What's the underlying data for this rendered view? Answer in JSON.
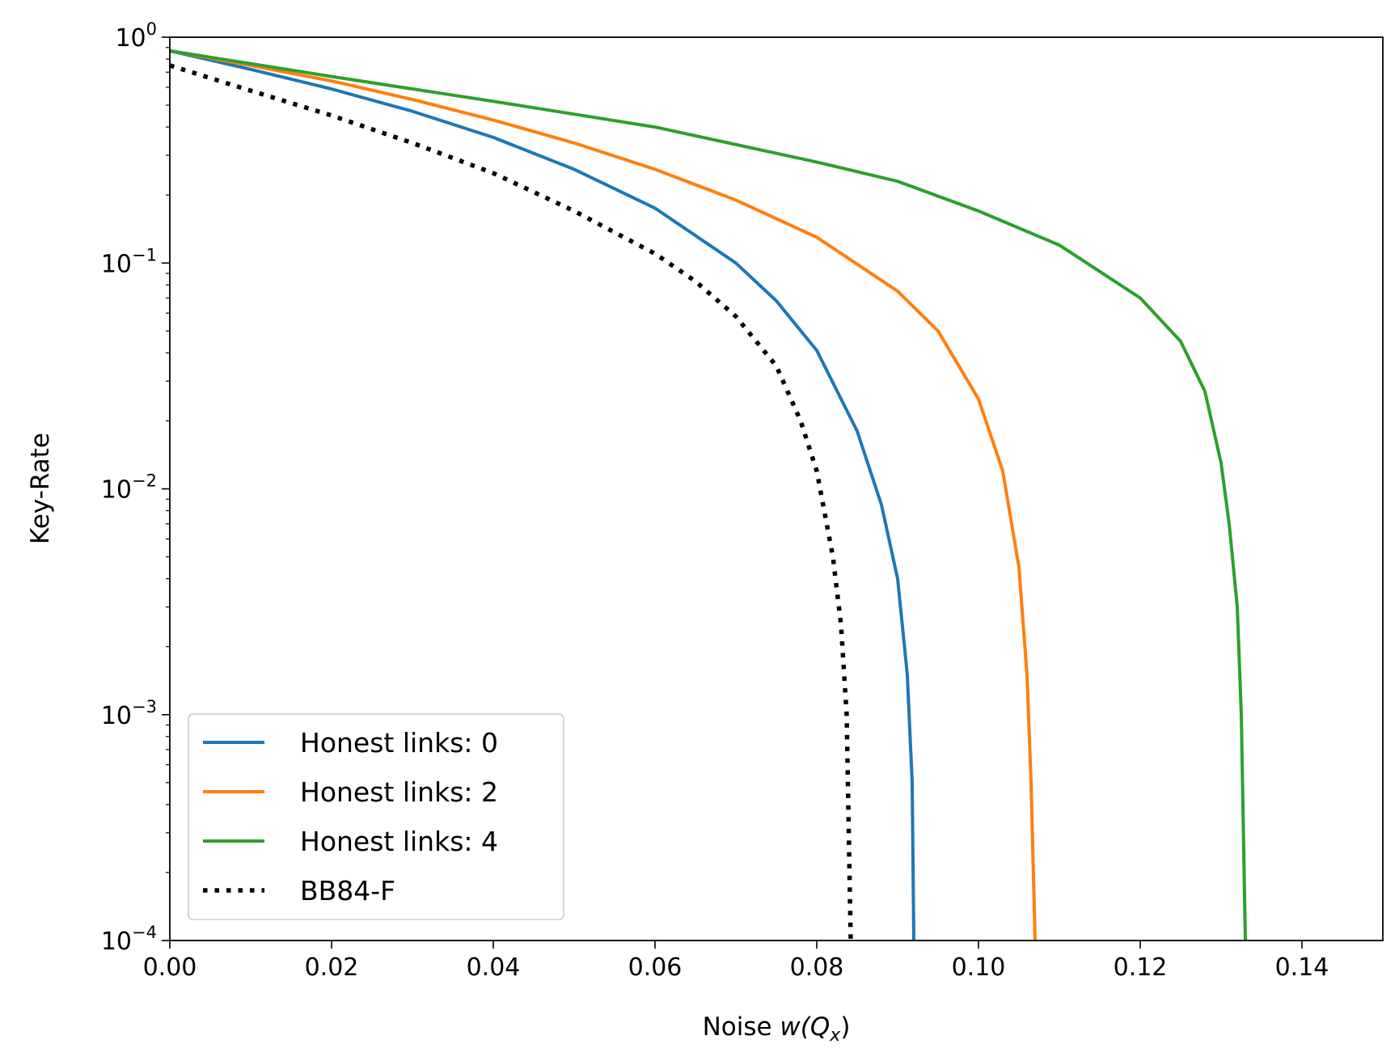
{
  "chart_data": {
    "type": "line",
    "xlabel_prefix": "Noise ",
    "xlabel_math": "w(Q",
    "xlabel_sub": "x",
    "xlabel_close": ")",
    "ylabel": "Key-Rate",
    "xlim": [
      0.0,
      0.15
    ],
    "ylim": [
      0.0001,
      1
    ],
    "yscale": "log",
    "grid": false,
    "legend_position": "lower-left",
    "x_ticks": [
      0.0,
      0.02,
      0.04,
      0.06,
      0.08,
      0.1,
      0.12,
      0.14
    ],
    "x_tick_labels": [
      "0.00",
      "0.02",
      "0.04",
      "0.06",
      "0.08",
      "0.10",
      "0.12",
      "0.14"
    ],
    "y_ticks": [
      {
        "value": 1,
        "base": "10",
        "exp": "0"
      },
      {
        "value": 0.1,
        "base": "10",
        "exp": "−1"
      },
      {
        "value": 0.01,
        "base": "10",
        "exp": "−2"
      },
      {
        "value": 0.001,
        "base": "10",
        "exp": "−3"
      },
      {
        "value": 0.0001,
        "base": "10",
        "exp": "−4"
      }
    ],
    "series": [
      {
        "name": "Honest links: 0",
        "color": "#1f77b4",
        "style": "solid",
        "points": [
          [
            0.0,
            0.87
          ],
          [
            0.01,
            0.72
          ],
          [
            0.02,
            0.59
          ],
          [
            0.03,
            0.47
          ],
          [
            0.04,
            0.36
          ],
          [
            0.05,
            0.26
          ],
          [
            0.06,
            0.175
          ],
          [
            0.07,
            0.1
          ],
          [
            0.075,
            0.068
          ],
          [
            0.08,
            0.041
          ],
          [
            0.085,
            0.018
          ],
          [
            0.088,
            0.0085
          ],
          [
            0.09,
            0.004
          ],
          [
            0.0912,
            0.0015
          ],
          [
            0.0918,
            0.0005
          ],
          [
            0.092,
            0.0001
          ]
        ]
      },
      {
        "name": "Honest links: 2",
        "color": "#ff7f0e",
        "style": "solid",
        "points": [
          [
            0.0,
            0.87
          ],
          [
            0.01,
            0.75
          ],
          [
            0.02,
            0.64
          ],
          [
            0.03,
            0.53
          ],
          [
            0.04,
            0.43
          ],
          [
            0.05,
            0.34
          ],
          [
            0.06,
            0.26
          ],
          [
            0.07,
            0.19
          ],
          [
            0.08,
            0.13
          ],
          [
            0.09,
            0.075
          ],
          [
            0.095,
            0.05
          ],
          [
            0.1,
            0.025
          ],
          [
            0.103,
            0.012
          ],
          [
            0.105,
            0.0045
          ],
          [
            0.106,
            0.0015
          ],
          [
            0.1065,
            0.0005
          ],
          [
            0.107,
            0.0001
          ]
        ]
      },
      {
        "name": "Honest links: 4",
        "color": "#2ca02c",
        "style": "solid",
        "points": [
          [
            0.0,
            0.87
          ],
          [
            0.02,
            0.67
          ],
          [
            0.04,
            0.52
          ],
          [
            0.06,
            0.4
          ],
          [
            0.08,
            0.28
          ],
          [
            0.09,
            0.23
          ],
          [
            0.1,
            0.17
          ],
          [
            0.11,
            0.12
          ],
          [
            0.12,
            0.07
          ],
          [
            0.125,
            0.045
          ],
          [
            0.128,
            0.027
          ],
          [
            0.13,
            0.013
          ],
          [
            0.131,
            0.007
          ],
          [
            0.132,
            0.003
          ],
          [
            0.1325,
            0.001
          ],
          [
            0.133,
            0.0001
          ]
        ]
      },
      {
        "name": "BB84-F",
        "color": "#000000",
        "style": "dotted",
        "points": [
          [
            0.0,
            0.75
          ],
          [
            0.01,
            0.58
          ],
          [
            0.02,
            0.45
          ],
          [
            0.03,
            0.34
          ],
          [
            0.04,
            0.25
          ],
          [
            0.05,
            0.17
          ],
          [
            0.06,
            0.11
          ],
          [
            0.065,
            0.083
          ],
          [
            0.07,
            0.058
          ],
          [
            0.075,
            0.035
          ],
          [
            0.078,
            0.02
          ],
          [
            0.08,
            0.012
          ],
          [
            0.082,
            0.005
          ],
          [
            0.083,
            0.0025
          ],
          [
            0.0837,
            0.001
          ],
          [
            0.0842,
            0.0001
          ]
        ]
      }
    ]
  }
}
